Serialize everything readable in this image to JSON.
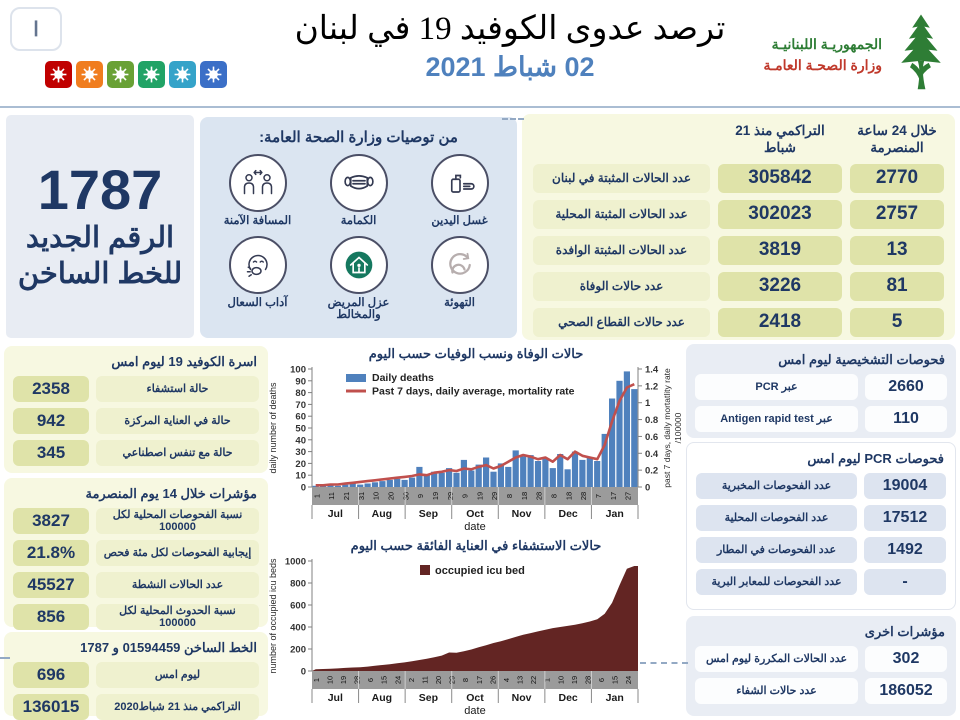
{
  "header": {
    "slide_indicator": "ا",
    "title": "ترصد عدوى الكوفيد 19 في لبنان",
    "date": "02 شباط 2021",
    "logo": {
      "line1": "الجمهوريـة اللبنانيـة",
      "line2": "وزارة الصحـة العامـة"
    },
    "virus_icon_colors": [
      "#c00000",
      "#f07d1f",
      "#69a135",
      "#21a366",
      "#35a3c9",
      "#3b6fc7"
    ]
  },
  "hotline_box": {
    "number": "1787",
    "line1": "الرقم الجديد",
    "line2": "للخط الساخن"
  },
  "recommendations": {
    "title": "من توصيات وزارة الصحة العامة:",
    "items": [
      {
        "label": "غسل اليدين",
        "icon": "hand-wash-icon"
      },
      {
        "label": "الكمامة",
        "icon": "mask-icon"
      },
      {
        "label": "المسافة الآمنة",
        "icon": "safe-distance-icon"
      },
      {
        "label": "التهوئة",
        "icon": "ventilation-icon"
      },
      {
        "label": "عزل المريض والمخالط",
        "icon": "isolation-icon"
      },
      {
        "label": "آداب السعال",
        "icon": "cough-etiquette-icon"
      }
    ]
  },
  "summary_table": {
    "col_24h": "خلال 24 ساعة المنصرمة",
    "col_cumulative": "التراكمي منذ 21 شباط",
    "rows": [
      {
        "label": "عدد الحالات المثبتة في لبنان",
        "cumulative": "305842",
        "last24h": "2770"
      },
      {
        "label": "عدد الحالات المثبتة المحلية",
        "cumulative": "302023",
        "last24h": "2757"
      },
      {
        "label": "عدد الحالات المثبتة الوافدة",
        "cumulative": "3819",
        "last24h": "13"
      },
      {
        "label": "عدد حالات الوفاة",
        "cumulative": "3226",
        "last24h": "81"
      },
      {
        "label": "عدد حالات القطاع الصحي",
        "cumulative": "2418",
        "last24h": "5"
      }
    ]
  },
  "covid_beds": {
    "title": "اسرة الكوفيد 19 ليوم امس",
    "rows": [
      {
        "value": "2358",
        "label": "حالة استشفاء"
      },
      {
        "value": "942",
        "label": "حالة في العناية المركزة"
      },
      {
        "value": "345",
        "label": "حالة مع تنفس اصطناعي"
      }
    ]
  },
  "indicators_14d": {
    "title": "مؤشرات خلال 14 يوم المنصرمة",
    "rows": [
      {
        "value": "3827",
        "label": "نسبة الفحوصات  المحلية لكل 100000"
      },
      {
        "value": "21.8%",
        "label": "إيجابية الفحوصات لكل مئة فحص"
      },
      {
        "value": "45527",
        "label": "عدد الحالات النشطة"
      },
      {
        "value": "856",
        "label": "نسبة الحدوث المحلية لكل 100000"
      }
    ]
  },
  "hotline_stats": {
    "title": "الخط الساخن 01594459 و 1787",
    "rows": [
      {
        "value": "696",
        "label": "ليوم امس"
      },
      {
        "value": "136015",
        "label": "التراكمي منذ 21 شباط2020"
      }
    ]
  },
  "diagnostic_tests": {
    "title": "فحوصات التشخيصية ليوم امس",
    "rows": [
      {
        "value": "2660",
        "label": "عبر PCR"
      },
      {
        "value": "110",
        "label": "عبر Antigen rapid test"
      }
    ]
  },
  "pcr_tests": {
    "title": "فحوصات PCR ليوم امس",
    "rows": [
      {
        "value": "19004",
        "label": "عدد الفحوصات المخبرية"
      },
      {
        "value": "17512",
        "label": "عدد الفحوصات المحلية"
      },
      {
        "value": "1492",
        "label": "عدد الفحوصات في المطار"
      },
      {
        "value": "-",
        "label": "عدد الفحوصات للمعابر البرية"
      }
    ]
  },
  "other_indicators": {
    "title": "مؤشرات اخرى",
    "rows": [
      {
        "value": "302",
        "label": "عدد الحالات المكررة  ليوم امس"
      },
      {
        "value": "186052",
        "label": "عدد حالات الشفاء"
      }
    ]
  },
  "colors": {
    "navy_text": "#1f3864",
    "date_blue": "#4f81bd",
    "panel_yellow": "#f7f8e1",
    "cell_khaki": "#dfe3a9",
    "panel_light_blue": "#dbe5f1",
    "panel_gray_blue": "#e9edf4",
    "bar_blue": "#4f81bd",
    "line_red": "#c0504d",
    "area_maroon": "#632523",
    "logo_green": "#2e7d35",
    "logo_red": "#c0392b"
  },
  "chart_data": [
    {
      "type": "bar+line",
      "title_ar": "حالات الوفاة ونسب الوفيات حسب اليوم",
      "xlabel": "date",
      "ylabel_left": "daily number of deaths",
      "ylabel_right": "past 7 days, daily mortatlity rate",
      "ylabel_right2": "/100000",
      "ylim_left": [
        0,
        100
      ],
      "ytick_step_left": 10,
      "ylim_right": [
        0,
        1.4
      ],
      "ytick_step_right": 0.2,
      "grid": false,
      "legend_position": "top-left-inside",
      "legend": [
        {
          "label": "Daily deaths",
          "color": "#4f81bd",
          "type": "bar"
        },
        {
          "label": "Past 7 days, daily average, mortality rate",
          "color": "#c0504d",
          "type": "line"
        }
      ],
      "months": [
        "Jul",
        "Aug",
        "Sep",
        "Oct",
        "Nov",
        "Dec",
        "Jan"
      ],
      "day_ticks": [
        "1",
        "11",
        "21",
        "31",
        "10",
        "20",
        "30",
        "9",
        "19",
        "29",
        "9",
        "19",
        "29",
        "8",
        "18",
        "28",
        "8",
        "18",
        "28",
        "7",
        "17",
        "27"
      ],
      "x_note": "values sampled about every 5 days from 1 Jul to 31 Jan",
      "series": [
        {
          "name": "Daily deaths",
          "axis": "left",
          "values": [
            1,
            1,
            2,
            1,
            2,
            3,
            2,
            3,
            4,
            5,
            6,
            7,
            6,
            8,
            17,
            10,
            13,
            12,
            16,
            12,
            23,
            14,
            19,
            25,
            13,
            20,
            17,
            31,
            26,
            27,
            22,
            24,
            16,
            28,
            15,
            30,
            23,
            25,
            22,
            45,
            75,
            90,
            98,
            83
          ]
        },
        {
          "name": "Past 7 days, daily average, mortality rate",
          "axis": "right",
          "values": [
            0.02,
            0.02,
            0.03,
            0.03,
            0.04,
            0.05,
            0.06,
            0.07,
            0.08,
            0.09,
            0.1,
            0.11,
            0.12,
            0.13,
            0.15,
            0.14,
            0.17,
            0.18,
            0.2,
            0.19,
            0.22,
            0.21,
            0.24,
            0.26,
            0.22,
            0.25,
            0.3,
            0.35,
            0.38,
            0.36,
            0.33,
            0.35,
            0.3,
            0.38,
            0.33,
            0.42,
            0.37,
            0.35,
            0.33,
            0.5,
            0.78,
            1.02,
            1.18,
            1.22
          ]
        }
      ]
    },
    {
      "type": "area",
      "title_ar": "حالات الاستشفاء في العناية الفائقة حسب اليوم",
      "xlabel": "date",
      "ylabel_left": "number of occupied icu beds",
      "ylim_left": [
        0,
        1000
      ],
      "ytick_step_left": 200,
      "grid": false,
      "legend_position": "top-center-inside",
      "legend": [
        {
          "label": "occupied icu bed",
          "color": "#632523",
          "type": "square"
        }
      ],
      "months": [
        "Jul",
        "Aug",
        "Sep",
        "Oct",
        "Nov",
        "Dec",
        "Jan"
      ],
      "day_ticks": [
        "1",
        "10",
        "19",
        "28",
        "6",
        "15",
        "24",
        "2",
        "11",
        "20",
        "29",
        "8",
        "17",
        "26",
        "4",
        "13",
        "22",
        "1",
        "10",
        "19",
        "28",
        "6",
        "15",
        "24"
      ],
      "x_note": "values sampled about every 5 days from 1 Jul to 31 Jan",
      "series": [
        {
          "name": "occupied icu bed",
          "axis": "left",
          "values": [
            15,
            18,
            20,
            24,
            28,
            32,
            35,
            40,
            48,
            55,
            62,
            70,
            78,
            88,
            100,
            112,
            125,
            140,
            168,
            165,
            180,
            195,
            215,
            235,
            255,
            270,
            290,
            310,
            330,
            345,
            360,
            375,
            390,
            400,
            410,
            420,
            435,
            450,
            470,
            520,
            620,
            780,
            930,
            955
          ]
        }
      ]
    }
  ]
}
